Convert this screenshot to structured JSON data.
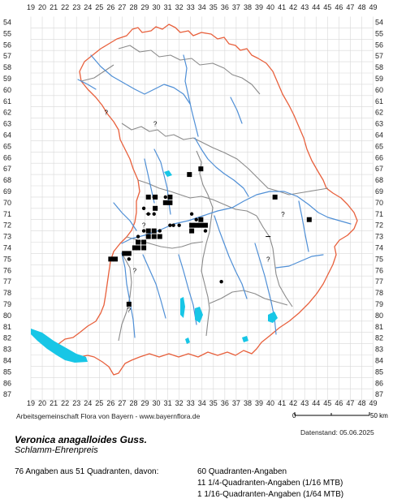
{
  "grid": {
    "columns": [
      "19",
      "20",
      "21",
      "22",
      "23",
      "24",
      "25",
      "26",
      "27",
      "28",
      "29",
      "30",
      "31",
      "32",
      "33",
      "34",
      "35",
      "36",
      "37",
      "38",
      "39",
      "40",
      "41",
      "42",
      "43",
      "44",
      "45",
      "46",
      "47",
      "48",
      "49"
    ],
    "rows": [
      "54",
      "55",
      "56",
      "57",
      "58",
      "59",
      "60",
      "61",
      "62",
      "63",
      "64",
      "65",
      "66",
      "67",
      "68",
      "69",
      "70",
      "71",
      "72",
      "73",
      "74",
      "75",
      "76",
      "77",
      "78",
      "79",
      "80",
      "81",
      "82",
      "83",
      "84",
      "85",
      "86",
      "87"
    ]
  },
  "colors": {
    "state_border": "#e8603c",
    "district_border": "#8a8a8a",
    "rivers": "#4f8fd6",
    "lakes": "#17c6e6",
    "grid": "#d8d8d8",
    "symbol": "#000000"
  },
  "records": {
    "squares": [
      [
        29.3,
        69.5
      ],
      [
        29.9,
        69.5
      ],
      [
        29.9,
        70.5
      ],
      [
        30.8,
        70.0
      ],
      [
        31.2,
        70.0
      ],
      [
        31.2,
        69.5
      ],
      [
        32.9,
        67.5
      ],
      [
        33.9,
        67.0
      ],
      [
        40.4,
        69.5
      ],
      [
        43.4,
        71.5
      ],
      [
        33.1,
        72.5
      ],
      [
        33.1,
        72.0
      ],
      [
        33.5,
        72.0
      ],
      [
        33.9,
        72.0
      ],
      [
        33.9,
        71.5
      ],
      [
        34.3,
        72.0
      ],
      [
        26.0,
        75.0
      ],
      [
        26.4,
        75.0
      ],
      [
        27.2,
        74.5
      ],
      [
        27.6,
        74.5
      ],
      [
        28.1,
        74.0
      ],
      [
        28.4,
        74.0
      ],
      [
        28.4,
        73.5
      ],
      [
        28.9,
        73.5
      ],
      [
        28.9,
        74.0
      ],
      [
        29.3,
        73.0
      ],
      [
        29.3,
        72.5
      ],
      [
        29.8,
        72.5
      ],
      [
        29.8,
        73.0
      ],
      [
        30.3,
        73.0
      ],
      [
        27.6,
        79.0
      ]
    ],
    "dots": [
      [
        28.9,
        70.5
      ],
      [
        29.3,
        71.0
      ],
      [
        29.8,
        71.0
      ],
      [
        29.8,
        69.5
      ],
      [
        30.8,
        69.5
      ],
      [
        31.2,
        72.0
      ],
      [
        31.5,
        72.0
      ],
      [
        32.0,
        72.0
      ],
      [
        33.5,
        71.5
      ],
      [
        33.1,
        71.0
      ],
      [
        34.3,
        72.5
      ],
      [
        28.4,
        73.0
      ],
      [
        28.9,
        72.5
      ],
      [
        30.3,
        72.5
      ],
      [
        27.6,
        75.0
      ],
      [
        35.7,
        77.0
      ]
    ],
    "query": [
      [
        25.6,
        62.0
      ],
      [
        29.9,
        63.0
      ],
      [
        28.9,
        72.0
      ],
      [
        39.8,
        75.0
      ],
      [
        27.6,
        79.5
      ],
      [
        41.1,
        71.0
      ],
      [
        28.1,
        76.0
      ]
    ],
    "dashes": [
      [
        29.3,
        71.0
      ],
      [
        39.8,
        73.0
      ]
    ]
  },
  "credit": "Arbeitsgemeinschaft Flora von Bayern - www.bayernflora.de",
  "scale": {
    "start": "0",
    "end": "50 km"
  },
  "date_label": "Datenstand: 05.06.2025",
  "species_name": "Veronica anagalloides Guss.",
  "german_name": "Schlamm-Ehrenpreis",
  "summary": "76 Angaben aus 51 Quadranten, davon:",
  "stats": [
    "60 Quadranten-Angaben",
    "11 1/4-Quadranten-Angaben (1/16 MTB)",
    "1 1/16-Quadranten-Angaben (1/64 MTB)"
  ]
}
